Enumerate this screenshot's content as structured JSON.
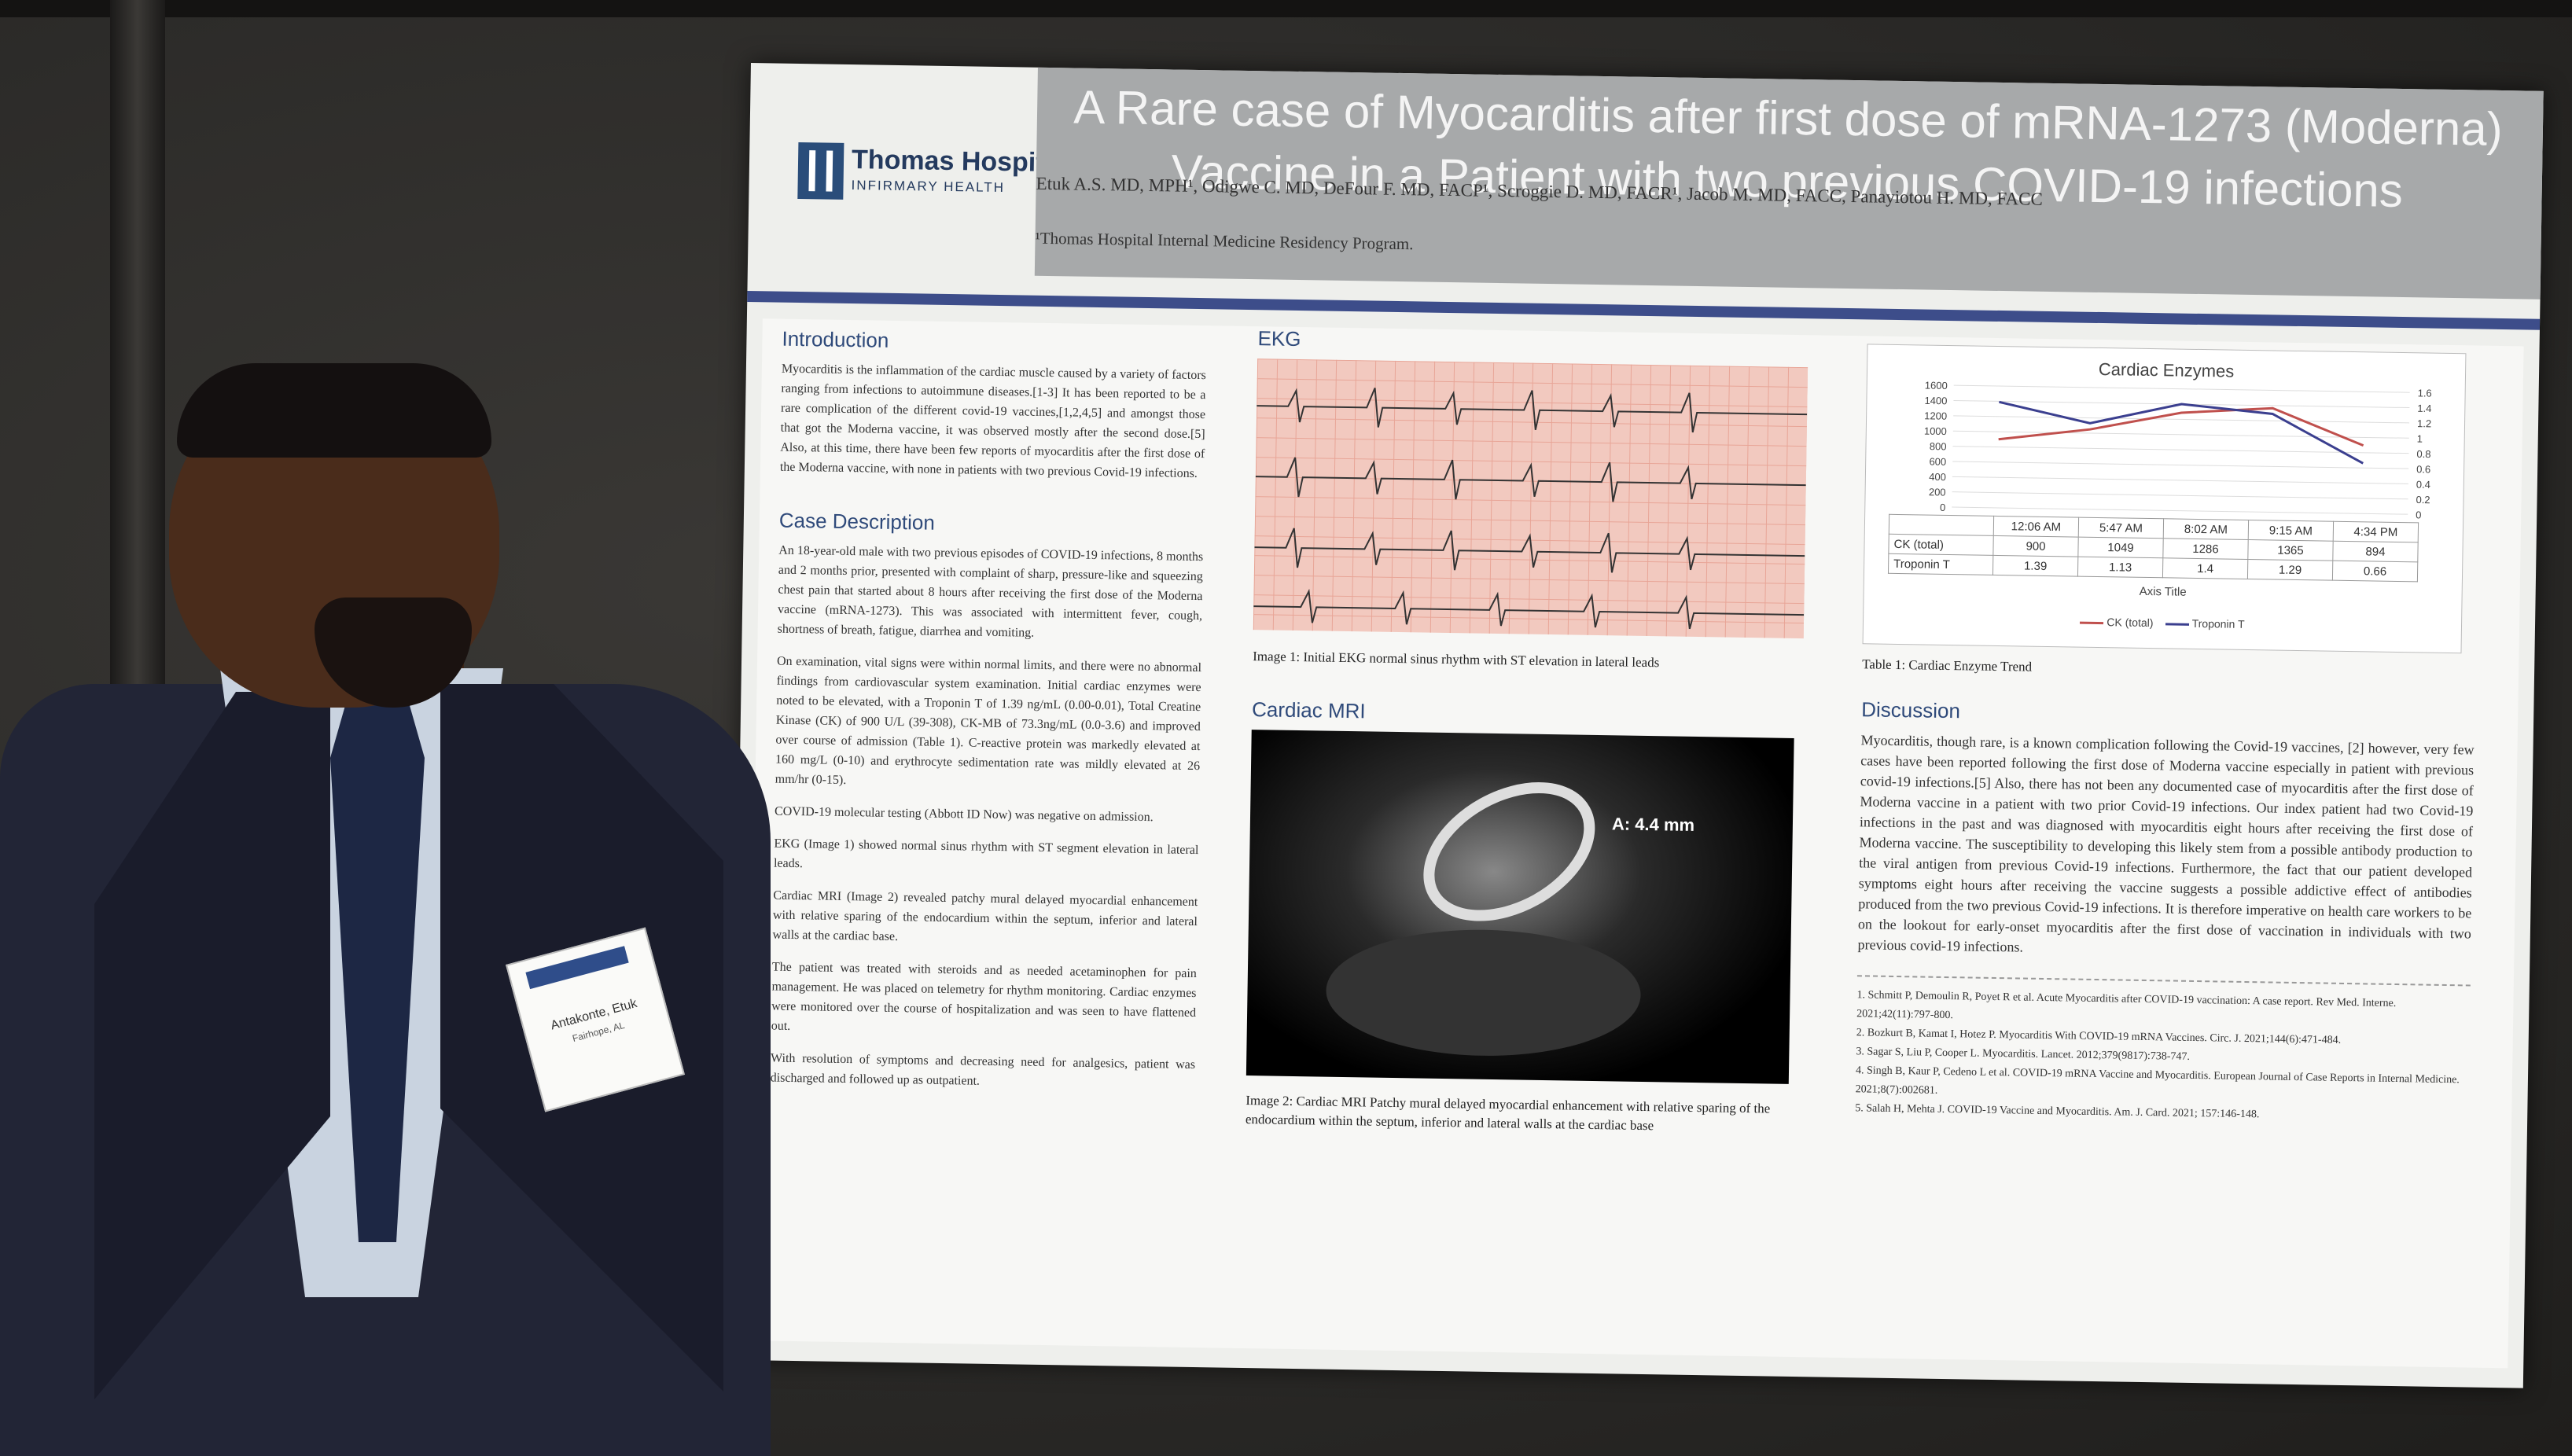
{
  "poster": {
    "logo": {
      "name": "Thomas Hospital",
      "sub": "INFIRMARY HEALTH"
    },
    "title_line1": "A Rare case of Myocarditis after first dose of mRNA-1273 (Moderna)",
    "title_line2": "Vaccine in a Patient with two previous COVID-19 infections",
    "authors": "Etuk A.S. MD, MPH¹, Odigwe C. MD, DeFour F. MD, FACP¹, Scroggie D. MD, FACR¹, Jacob M. MD, FACC, Panayiotou H. MD, FACC",
    "affiliation": "¹Thomas Hospital Internal Medicine Residency Program.",
    "introduction": {
      "heading": "Introduction",
      "text": "Myocarditis is the inflammation of the cardiac muscle caused by a variety of factors ranging from infections to autoimmune diseases.[1-3] It has been reported to be a rare complication of the different covid-19 vaccines,[1,2,4,5] and amongst those that got the Moderna vaccine, it was observed mostly after the second dose.[5] Also, at this time, there have been few reports of myocarditis after the first dose of the Moderna vaccine, with none in patients with two previous Covid-19 infections."
    },
    "case": {
      "heading": "Case Description",
      "p1": "An 18-year-old male with two previous episodes of COVID-19 infections, 8 months and 2 months prior, presented with complaint of sharp, pressure-like and squeezing chest pain that started about 8 hours after receiving the first dose of the Moderna vaccine (mRNA-1273). This was associated with intermittent fever, cough, shortness of breath, fatigue, diarrhea and vomiting.",
      "p2": "On examination, vital signs were within normal limits, and there were no abnormal findings from cardiovascular system examination. Initial cardiac enzymes were noted to be elevated, with a Troponin T of 1.39 ng/mL (0.00-0.01), Total Creatine Kinase (CK) of 900 U/L (39-308), CK-MB of 73.3ng/mL (0.0-3.6) and improved over course of admission (Table 1). C-reactive protein was markedly elevated at 160 mg/L (0-10) and erythrocyte sedimentation rate was mildly elevated at 26 mm/hr (0-15).",
      "p3": "COVID-19 molecular testing (Abbott ID Now) was negative on admission.",
      "p4": "EKG (Image 1) showed normal sinus rhythm with ST segment elevation in lateral leads.",
      "p5": "Cardiac MRI (Image 2) revealed patchy mural delayed myocardial enhancement with relative sparing of the endocardium within the septum, inferior and lateral walls at the cardiac base.",
      "p6": "The patient was treated with steroids and as needed acetaminophen for pain management. He was placed on telemetry for rhythm monitoring. Cardiac enzymes were monitored over the course of hospitalization and was seen to have flattened out.",
      "p7": "With resolution of symptoms and decreasing need for analgesics, patient was discharged and followed up as outpatient."
    },
    "ekg": {
      "heading": "EKG",
      "caption": "Image 1: Initial EKG normal sinus rhythm with ST elevation in lateral leads"
    },
    "mri": {
      "heading": "Cardiac MRI",
      "measure": "A: 4.4 mm",
      "caption": "Image 2: Cardiac MRI Patchy mural delayed myocardial enhancement with relative sparing of the endocardium within the septum, inferior and lateral walls at the cardiac base"
    },
    "table_caption": "Table 1: Cardiac Enzyme Trend",
    "discussion": {
      "heading": "Discussion",
      "text": "Myocarditis, though rare, is a known complication following the Covid-19 vaccines, [2] however, very few cases have been reported following the first dose of Moderna vaccine especially in patient with previous covid-19 infections.[5] Also, there has not been any documented case of myocarditis after the first dose of Moderna vaccine in a patient with two prior Covid-19 infections. Our index patient had two Covid-19 infections in the past and was diagnosed with myocarditis eight hours after receiving the first dose of Moderna vaccine. The susceptibility to developing this likely stem from a possible antibody production to the viral antigen from previous Covid-19 infections. Furthermore, the fact that our patient developed symptoms eight hours after receiving the vaccine suggests a possible addictive effect of antibodies produced from the two previous Covid-19 infections. It is therefore imperative on health care workers to be on the lookout for early-onset myocarditis after the first dose of vaccination in individuals with two previous covid-19 infections."
    },
    "references": [
      "1. Schmitt P, Demoulin R, Poyet R et al. Acute Myocarditis after COVID-19 vaccination: A case report. Rev Med. Interne. 2021;42(11):797-800.",
      "2. Bozkurt B, Kamat I, Hotez P. Myocarditis With COVID-19 mRNA Vaccines. Circ. J. 2021;144(6):471-484.",
      "3. Sagar S, Liu P, Cooper L. Myocarditis. Lancet. 2012;379(9817):738-747.",
      "4. Singh B, Kaur P, Cedeno L et al. COVID-19 mRNA Vaccine and Myocarditis. European Journal of Case Reports in Internal Medicine. 2021;8(7):002681.",
      "5. Salah H, Mehta J. COVID-19 Vaccine and Myocarditis. Am. J. Card. 2021; 157:146-148."
    ]
  },
  "chart_data": {
    "type": "line",
    "title": "Cardiac Enzymes",
    "categories": [
      "12:06 AM",
      "5:47 AM",
      "8:02 AM",
      "9:15 AM",
      "4:34 PM"
    ],
    "series": [
      {
        "name": "CK (total)",
        "values": [
          900,
          1049,
          1286,
          1365,
          894
        ],
        "axis": "left",
        "color": "#c0504d"
      },
      {
        "name": "Troponin T",
        "values": [
          1.39,
          1.13,
          1.4,
          1.29,
          0.66
        ],
        "axis": "right",
        "color": "#3b3f8f"
      }
    ],
    "ylim_left": [
      0,
      1600
    ],
    "ylim_right": [
      0,
      1.6
    ],
    "left_ticks": [
      "1600",
      "1400",
      "1200",
      "1000",
      "800",
      "600",
      "400",
      "200",
      "0"
    ],
    "right_ticks": [
      "1.6",
      "1.4",
      "1.2",
      "1",
      "0.8",
      "0.6",
      "0.4",
      "0.2",
      "0"
    ],
    "xlabel": "Axis Title",
    "legend": [
      "CK (total)",
      "Troponin T"
    ]
  },
  "badge": {
    "name": "Antakonte, Etuk",
    "sub": "Fairhope, AL"
  }
}
